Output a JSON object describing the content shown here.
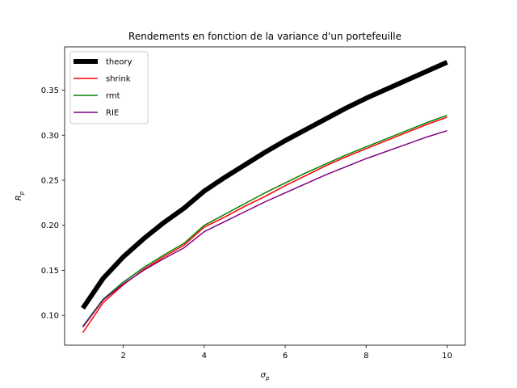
{
  "chart_data": {
    "type": "line",
    "title": "Rendements en fonction de la variance d'un portefeuille",
    "xlabel_base": "σ",
    "xlabel_sub": "p",
    "ylabel_base": "R",
    "ylabel_sub": "p",
    "xlim": [
      0.55,
      10.45
    ],
    "ylim": [
      0.067,
      0.398
    ],
    "xticks": [
      2,
      4,
      6,
      8,
      10
    ],
    "yticks": [
      0.1,
      0.15,
      0.2,
      0.25,
      0.3,
      0.35
    ],
    "ytick_labels": [
      "0.10",
      "0.15",
      "0.20",
      "0.25",
      "0.30",
      "0.35"
    ],
    "grid": false,
    "legend_position": "upper left",
    "x": [
      1,
      1.5,
      2,
      2.5,
      3,
      3.5,
      4,
      4.5,
      5,
      5.5,
      6,
      6.5,
      7,
      7.5,
      8,
      8.5,
      9,
      9.5,
      10
    ],
    "series": [
      {
        "name": "theory",
        "color": "#000000",
        "values": [
          0.108,
          0.141,
          0.165,
          0.185,
          0.203,
          0.219,
          0.238,
          0.253,
          0.267,
          0.281,
          0.294,
          0.306,
          0.318,
          0.33,
          0.341,
          0.351,
          0.361,
          0.371,
          0.381
        ]
      },
      {
        "name": "shrink",
        "color": "#ff0000",
        "values": [
          0.081,
          0.114,
          0.134,
          0.151,
          0.165,
          0.178,
          0.198,
          0.209,
          0.221,
          0.232,
          0.244,
          0.255,
          0.266,
          0.276,
          0.285,
          0.294,
          0.303,
          0.312,
          0.32
        ]
      },
      {
        "name": "rmt",
        "color": "#008000",
        "values": [
          0.088,
          0.118,
          0.137,
          0.153,
          0.167,
          0.18,
          0.2,
          0.212,
          0.224,
          0.236,
          0.247,
          0.258,
          0.268,
          0.278,
          0.287,
          0.296,
          0.305,
          0.314,
          0.322
        ]
      },
      {
        "name": "RIE",
        "color": "#800080",
        "values": [
          0.087,
          0.117,
          0.135,
          0.15,
          0.163,
          0.175,
          0.193,
          0.204,
          0.215,
          0.226,
          0.236,
          0.246,
          0.256,
          0.265,
          0.274,
          0.282,
          0.29,
          0.298,
          0.305
        ]
      }
    ]
  }
}
